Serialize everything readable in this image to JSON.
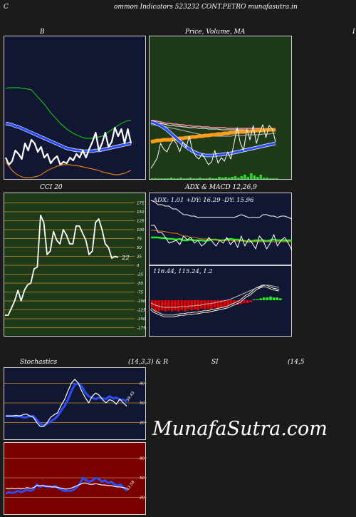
{
  "header": {
    "left": "C",
    "center": "ommon  Indicators 523232  CONT.PETRO munafasutra.in",
    "right_edge": "I"
  },
  "titles": {
    "bb": "B",
    "price": "Price,  Volume,  MA",
    "cci": "CCI 20",
    "adx_macd": "ADX  & MACD 12,26,9",
    "stoch": "Stochastics",
    "stoch_params": "(14,3,3) & R",
    "rsi": "SI",
    "rsi_params": "(14,5"
  },
  "watermark": "MunafaSutra.com",
  "colors": {
    "navy_bg": "#111733",
    "green_bg": "#1e3a18",
    "red_bg": "#7a0000",
    "white": "#ffffff",
    "blue": "#2233ff",
    "green": "#22cc22",
    "orange": "#e07a10",
    "red": "#ee0000"
  },
  "chart_data": [
    {
      "id": "bollinger",
      "type": "line",
      "series": [
        {
          "key": "upper",
          "color": "#11bb11",
          "values": [
            73,
            72,
            72,
            72,
            72,
            73,
            73,
            74,
            75,
            80,
            85,
            90,
            95,
            101,
            107,
            112,
            117,
            122,
            126,
            130,
            133,
            136,
            138,
            140,
            142,
            143,
            143,
            143,
            142,
            141,
            140,
            137,
            134,
            131,
            128,
            125,
            122,
            120,
            118,
            118
          ]
        },
        {
          "key": "middle",
          "color": "#2a4cff",
          "values": [
            122,
            123,
            124,
            126,
            127,
            129,
            131,
            133,
            135,
            137,
            139,
            141,
            143,
            145,
            147,
            149,
            151,
            153,
            155,
            157,
            158,
            159,
            160,
            160,
            161,
            161,
            161,
            161,
            160,
            160,
            159,
            158,
            157,
            156,
            155,
            154,
            153,
            152,
            151,
            150
          ]
        },
        {
          "key": "close",
          "color": "#ffffff",
          "values": [
            170,
            180,
            175,
            160,
            165,
            172,
            150,
            160,
            145,
            150,
            162,
            155,
            170,
            165,
            178,
            172,
            168,
            180,
            176,
            178,
            170,
            174,
            165,
            170,
            160,
            170,
            158,
            148,
            135,
            160,
            150,
            135,
            155,
            148,
            128,
            140,
            130,
            150,
            130,
            150
          ]
        },
        {
          "key": "lower",
          "color": "#e07a10",
          "values": [
            176,
            182,
            188,
            192,
            195,
            197,
            198,
            198,
            198,
            197,
            196,
            194,
            191,
            188,
            186,
            184,
            182,
            181,
            180,
            180,
            180,
            181,
            181,
            182,
            183,
            184,
            185,
            186,
            187,
            188,
            190,
            191,
            192,
            193,
            194,
            194,
            193,
            192,
            190,
            188
          ]
        }
      ]
    },
    {
      "id": "price",
      "type": "line",
      "series": [
        {
          "key": "ma-long-pink",
          "color": "#ff8ab0",
          "values": [
            118,
            118,
            119,
            120,
            121,
            122,
            122,
            123,
            123,
            124,
            124,
            125,
            125,
            126,
            126,
            126,
            127,
            127,
            127,
            128,
            128,
            128,
            128,
            128,
            129,
            129,
            129,
            129,
            129,
            129,
            129,
            129,
            129,
            129,
            129,
            130,
            130,
            130,
            130,
            130
          ]
        },
        {
          "key": "ma-long-white",
          "color": "#ffffff",
          "values": [
            121,
            121,
            122,
            122,
            123,
            124,
            125,
            125,
            126,
            126,
            127,
            127,
            128,
            128,
            128,
            129,
            129,
            129,
            130,
            130,
            130,
            130,
            131,
            131,
            131,
            131,
            131,
            131,
            131,
            131,
            131,
            131,
            131,
            131,
            131,
            132,
            132,
            132,
            132,
            132
          ]
        },
        {
          "key": "ma-mid-gray",
          "color": "#bbbbbb",
          "values": [
            124,
            124,
            125,
            126,
            126,
            127,
            128,
            129,
            130,
            131,
            132,
            133,
            134,
            135,
            136,
            137,
            138,
            138,
            139,
            139,
            140,
            140,
            140,
            140,
            140,
            140,
            139,
            139,
            139,
            139,
            138,
            138,
            138,
            138,
            138,
            137,
            137,
            137,
            136,
            136
          ]
        },
        {
          "key": "ma-orange",
          "color": "#ff9d1a",
          "values": [
            148,
            147,
            146,
            146,
            145,
            145,
            145,
            144,
            144,
            143,
            143,
            142,
            142,
            141,
            141,
            140,
            140,
            139,
            139,
            138,
            138,
            137,
            137,
            136,
            136,
            135,
            135,
            134,
            134,
            134,
            133,
            133,
            133,
            132,
            132,
            132,
            131,
            131,
            131,
            131
          ]
        },
        {
          "key": "ma-short-blue",
          "color": "#2a4cff",
          "values": [
            120,
            121,
            123,
            125,
            128,
            131,
            135,
            139,
            143,
            147,
            151,
            155,
            158,
            161,
            163,
            165,
            166,
            167,
            167,
            167,
            167,
            166,
            166,
            165,
            165,
            164,
            163,
            162,
            161,
            160,
            159,
            158,
            157,
            156,
            155,
            154,
            153,
            152,
            151,
            150
          ]
        },
        {
          "key": "close",
          "color": "#ffffff",
          "values": [
            185,
            178,
            170,
            150,
            158,
            162,
            152,
            145,
            150,
            162,
            148,
            156,
            140,
            160,
            168,
            172,
            165,
            172,
            180,
            176,
            160,
            178,
            170,
            175,
            162,
            172,
            150,
            128,
            150,
            160,
            130,
            145,
            125,
            150,
            135,
            124,
            142,
            125,
            130,
            148
          ]
        }
      ],
      "volume": [
        1,
        1,
        1,
        1,
        1,
        1,
        2,
        1,
        1,
        2,
        1,
        1,
        2,
        1,
        1,
        2,
        1,
        1,
        2,
        1,
        1,
        3,
        2,
        3,
        2,
        3,
        4,
        2,
        4,
        6,
        3,
        8,
        5,
        3,
        6,
        2,
        2,
        1,
        1,
        1
      ]
    },
    {
      "id": "cci",
      "type": "line",
      "label": "22",
      "ticks": [
        175,
        150,
        125,
        100,
        75,
        50,
        25,
        0,
        -25,
        -50,
        -75,
        -100,
        -125,
        -150,
        -175
      ],
      "ylim": [
        -190,
        190
      ],
      "values": [
        -140,
        -140,
        -120,
        -100,
        -70,
        -100,
        -70,
        -55,
        -50,
        -10,
        -5,
        140,
        120,
        30,
        40,
        95,
        70,
        60,
        100,
        85,
        60,
        60,
        110,
        110,
        90,
        70,
        30,
        40,
        120,
        130,
        100,
        60,
        50,
        20,
        25,
        22
      ]
    },
    {
      "id": "adx",
      "type": "line",
      "title_values": "ADX: 1.01 +DY: 16.29 -DY: 15.96",
      "series": [
        {
          "key": "adx-white",
          "color": "#ffffff",
          "values": [
            10,
            12,
            16,
            16,
            18,
            18,
            22,
            22,
            26,
            30,
            30,
            32,
            32,
            34,
            34,
            34,
            34,
            34,
            34,
            34,
            34,
            34,
            34,
            34,
            32,
            30,
            32,
            34,
            34,
            34,
            34,
            30,
            30,
            32,
            32,
            34,
            32,
            32,
            34,
            36
          ]
        },
        {
          "key": "plus-di-green",
          "color": "#22ee22",
          "values": [
            62,
            62,
            62,
            63,
            63,
            64,
            64,
            65,
            64,
            66,
            66,
            65,
            66,
            66,
            66,
            67,
            66,
            65,
            65,
            66,
            66,
            65,
            64,
            65,
            65,
            66,
            67,
            68,
            67,
            66,
            66,
            66,
            67,
            66,
            65,
            66,
            66,
            66,
            66,
            66
          ]
        },
        {
          "key": "minus-di-orange",
          "color": "#e07a10",
          "values": [
            52,
            52,
            53,
            53,
            54,
            55,
            56,
            56,
            58,
            60,
            60,
            62,
            62,
            63,
            64,
            64,
            64,
            65,
            65,
            66,
            66,
            66,
            66,
            67,
            67,
            67,
            67,
            68,
            68,
            68,
            68,
            68,
            68,
            68,
            68,
            68,
            68,
            68,
            68,
            68
          ]
        },
        {
          "key": "di-white-2",
          "color": "#ffffff",
          "values": [
            45,
            45,
            55,
            55,
            62,
            70,
            68,
            66,
            72,
            60,
            65,
            62,
            70,
            66,
            74,
            70,
            62,
            68,
            74,
            66,
            70,
            62,
            72,
            66,
            76,
            60,
            74,
            64,
            70,
            78,
            60,
            66,
            78,
            70,
            58,
            74,
            66,
            62,
            70,
            80
          ]
        }
      ]
    },
    {
      "id": "macd",
      "type": "bar",
      "title_values": "116.44,  115.24,  1.2",
      "histogram": [
        -8,
        -12,
        -12,
        -11,
        -12,
        -11,
        -12,
        -11,
        -12,
        -11,
        -12,
        -10,
        -11,
        -10,
        -11,
        -9,
        -10,
        -9,
        -10,
        -8,
        -9,
        -8,
        -7,
        -7,
        -6,
        -5,
        -5,
        -4,
        -3,
        -3,
        -2,
        1,
        1,
        2,
        3,
        3,
        4,
        3,
        3,
        2
      ],
      "series": [
        {
          "key": "macd",
          "color": "#ffffff",
          "values": [
            60,
            64,
            66,
            68,
            70,
            70,
            70,
            70,
            69,
            68,
            68,
            67,
            67,
            66,
            66,
            65,
            64,
            64,
            63,
            62,
            61,
            60,
            59,
            58,
            56,
            54,
            52,
            50,
            46,
            42,
            40,
            36,
            32,
            30,
            28,
            28,
            30,
            32,
            33,
            34
          ]
        },
        {
          "key": "signal",
          "color": "#bbbbbb",
          "values": [
            52,
            54,
            56,
            57,
            58,
            58,
            58,
            58,
            58,
            57,
            57,
            57,
            56,
            56,
            55,
            55,
            54,
            53,
            53,
            52,
            51,
            50,
            49,
            48,
            47,
            45,
            43,
            41,
            39,
            37,
            35,
            33,
            31,
            30,
            28,
            27,
            27,
            28,
            29,
            30
          ]
        }
      ]
    },
    {
      "id": "stochastic",
      "type": "line",
      "label": "59.43",
      "ticks": [
        80,
        50,
        20
      ],
      "ylim": [
        0,
        100
      ],
      "series": [
        {
          "key": "k-blue",
          "color": "#2a4cff",
          "values": [
            30,
            30,
            30,
            29,
            30,
            28,
            28,
            30,
            30,
            24,
            18,
            16,
            18,
            22,
            25,
            30,
            38,
            45,
            55,
            68,
            78,
            80,
            75,
            66,
            60,
            58,
            56,
            58,
            57,
            56,
            60,
            57,
            58,
            55,
            55,
            52
          ]
        },
        {
          "key": "d-white",
          "color": "#ffffff",
          "values": [
            30,
            30,
            30,
            31,
            30,
            32,
            33,
            30,
            28,
            20,
            14,
            14,
            20,
            28,
            32,
            35,
            46,
            55,
            68,
            80,
            86,
            80,
            68,
            58,
            50,
            60,
            65,
            62,
            55,
            50,
            55,
            53,
            48,
            56,
            50,
            45
          ]
        }
      ]
    },
    {
      "id": "rsi",
      "type": "line",
      "label": "43.58",
      "ticks": [
        80,
        50,
        20
      ],
      "ylim": [
        0,
        100
      ],
      "series": [
        {
          "key": "rsi-blue",
          "color": "#2a4cff",
          "values": [
            26,
            28,
            27,
            28,
            30,
            28,
            30,
            32,
            30,
            32,
            40,
            36,
            38,
            37,
            36,
            36,
            38,
            34,
            32,
            30,
            30,
            30,
            32,
            36,
            42,
            50,
            46,
            44,
            46,
            50,
            48,
            44,
            46,
            42,
            44,
            40,
            38,
            40,
            35,
            30
          ]
        },
        {
          "key": "rsi-white",
          "color": "#ffffff",
          "values": [
            34,
            33,
            34,
            33,
            34,
            33,
            34,
            35,
            34,
            35,
            38,
            38,
            38,
            37,
            37,
            36,
            36,
            35,
            34,
            33,
            33,
            34,
            36,
            38,
            40,
            42,
            42,
            40,
            40,
            41,
            40,
            39,
            39,
            38,
            38,
            37,
            36,
            36,
            35,
            34
          ]
        }
      ]
    }
  ]
}
